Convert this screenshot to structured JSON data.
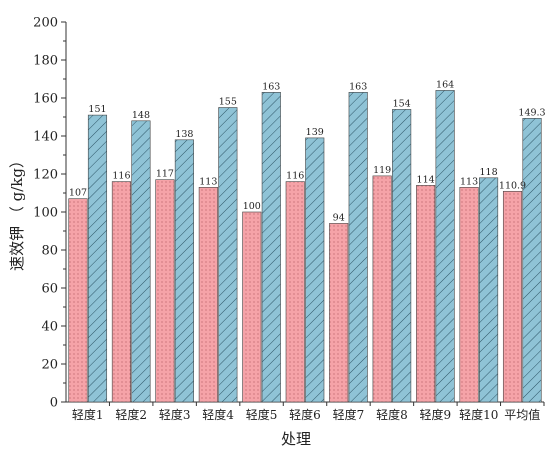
{
  "chart_data": {
    "type": "bar",
    "title": "",
    "xlabel": "处理",
    "ylabel": "速效钾 （ g/kg）",
    "ylim": [
      0,
      200
    ],
    "yticks": [
      0,
      20,
      40,
      60,
      80,
      100,
      120,
      140,
      160,
      180,
      200
    ],
    "categories": [
      "轻度1",
      "轻度2",
      "轻度3",
      "轻度4",
      "轻度5",
      "轻度6",
      "轻度7",
      "轻度8",
      "轻度9",
      "轻度10",
      "平均值"
    ],
    "series": [
      {
        "color": "#f5a3a8",
        "pattern": "dots",
        "values": [
          107,
          116,
          117,
          113,
          100,
          116,
          94,
          119,
          114,
          113,
          110.9
        ],
        "labels": [
          "107",
          "116",
          "117",
          "113",
          "100",
          "116",
          "94",
          "119",
          "114",
          "113",
          "110.9"
        ]
      },
      {
        "color": "#8fc3d6",
        "pattern": "diagonal-hatch",
        "values": [
          151,
          148,
          138,
          155,
          163,
          139,
          163,
          154,
          164,
          118,
          149.3
        ],
        "labels": [
          "151",
          "148",
          "138",
          "155",
          "163",
          "139",
          "163",
          "154",
          "164",
          "118",
          "149.3"
        ]
      }
    ],
    "grid": false,
    "legend": "none"
  }
}
